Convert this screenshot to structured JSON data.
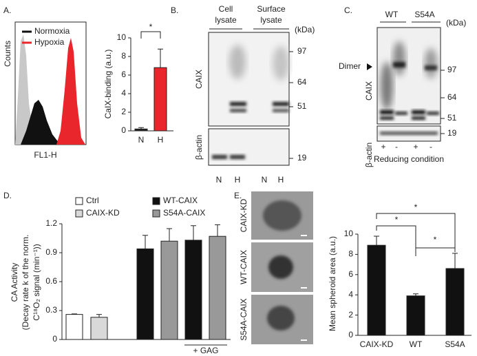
{
  "panels": {
    "A": {
      "label": "A.",
      "legend": [
        "Normoxia",
        "Hypoxia"
      ],
      "ylabel": "Counts",
      "xlabel": "FL1-H"
    },
    "B": {
      "label": "B.",
      "header": [
        [
          "Cell",
          "lysate"
        ],
        [
          "Surface",
          "lysate"
        ]
      ],
      "unit": "(kDa)",
      "markers": [
        97,
        64,
        51,
        19
      ],
      "rows": [
        "CAIX",
        "β-actin"
      ],
      "lanes": [
        "N",
        "H",
        "N",
        "H"
      ]
    },
    "C": {
      "label": "C.",
      "header": [
        "WT",
        "S54A"
      ],
      "unit": "(kDa)",
      "arrow": "Dimer",
      "markers": [
        97,
        64,
        51,
        19
      ],
      "rows": [
        "CAIX",
        "β-actin"
      ],
      "lanes": [
        "+",
        "-",
        "+",
        "-"
      ],
      "footer": "Reducing condition"
    },
    "D": {
      "label": "D."
    },
    "E": {
      "label": "E.",
      "images": [
        "CAIX-KD",
        "WT-CAIX",
        "S54A-CAIX"
      ]
    }
  },
  "chart_data": [
    {
      "type": "bar",
      "ylabel": "CaIX-binding (a.u.)",
      "categories": [
        "N",
        "H"
      ],
      "values": [
        0.2,
        6.8
      ],
      "errors": [
        0.15,
        2.0
      ],
      "colors": [
        "#222222",
        "#e8262b"
      ],
      "ylim": [
        0,
        10
      ],
      "yticks": [
        0,
        2,
        4,
        6,
        8,
        10
      ],
      "annotations": [
        "*"
      ]
    },
    {
      "type": "bar",
      "ylabel": [
        "CA Activity",
        "(Decay rate k of the norm.",
        "C¹⁸O₂ signal (min⁻¹))"
      ],
      "categories": [
        null,
        null,
        null,
        null,
        null,
        null
      ],
      "series": [
        {
          "name": "Ctrl",
          "color": "#ffffff",
          "values": [
            0.26,
            null,
            null,
            null,
            null,
            null
          ],
          "errors": [
            0.005,
            null,
            null,
            null,
            null,
            null
          ]
        },
        {
          "name": "CAIX-KD",
          "color": "#d9d9d9",
          "values": [
            null,
            0.23,
            null,
            null,
            null,
            null
          ],
          "errors": [
            null,
            0.03,
            null,
            null,
            null,
            null
          ]
        },
        {
          "name": "WT-CAIX",
          "color": "#111111",
          "values": [
            null,
            null,
            0.94,
            null,
            1.03,
            null
          ],
          "errors": [
            null,
            null,
            0.14,
            null,
            0.15,
            null
          ]
        },
        {
          "name": "S54A-CAIX",
          "color": "#999999",
          "values": [
            null,
            null,
            null,
            1.02,
            null,
            1.07
          ],
          "errors": [
            null,
            null,
            null,
            0.13,
            null,
            0.12
          ]
        }
      ],
      "ylim": [
        0,
        1.2
      ],
      "yticks": [
        0,
        0.3,
        0.6,
        0.9,
        1.2
      ],
      "annotations": [
        "+ GAG"
      ]
    },
    {
      "type": "bar",
      "ylabel": "Mean spheroid area (a.u.)",
      "categories": [
        "CAIX-KD",
        "WT",
        "S54A"
      ],
      "values": [
        8.9,
        3.9,
        6.6
      ],
      "errors": [
        0.9,
        0.2,
        1.5
      ],
      "colors": [
        "#111111",
        "#111111",
        "#111111"
      ],
      "ylim": [
        0,
        10
      ],
      "yticks": [
        0,
        2,
        4,
        6,
        8,
        10
      ],
      "annotations": [
        "*",
        "*",
        "*"
      ]
    }
  ]
}
